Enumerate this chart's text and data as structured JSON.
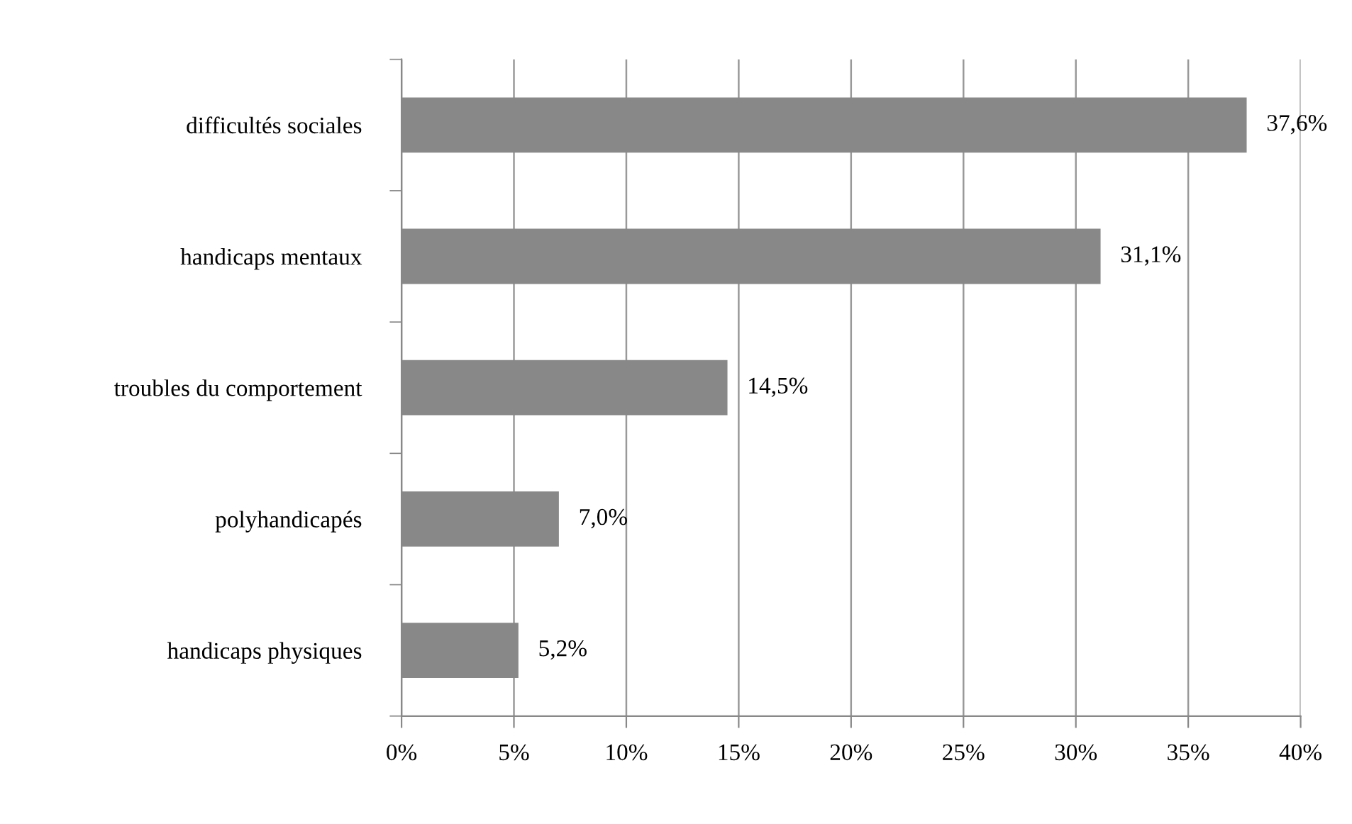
{
  "chart_data": {
    "type": "bar",
    "orientation": "horizontal",
    "categories": [
      "difficultés sociales",
      "handicaps mentaux",
      "troubles du comportement",
      "polyhandicapés",
      "handicaps physiques"
    ],
    "values": [
      37.6,
      31.1,
      14.5,
      7.0,
      5.2
    ],
    "value_labels": [
      "37,6%",
      "31,1%",
      "14,5%",
      "7,0%",
      "5,2%"
    ],
    "color": "#888888",
    "xlim": [
      0,
      40
    ],
    "xticks": [
      {
        "value": 0,
        "label": "0%"
      },
      {
        "value": 5,
        "label": "5%"
      },
      {
        "value": 10,
        "label": "10%"
      },
      {
        "value": 15,
        "label": "15%"
      },
      {
        "value": 20,
        "label": "20%"
      },
      {
        "value": 25,
        "label": "25%"
      },
      {
        "value": 30,
        "label": "30%"
      },
      {
        "value": 35,
        "label": "35%"
      },
      {
        "value": 40,
        "label": "40%"
      }
    ],
    "grid": "x",
    "legend": false
  }
}
